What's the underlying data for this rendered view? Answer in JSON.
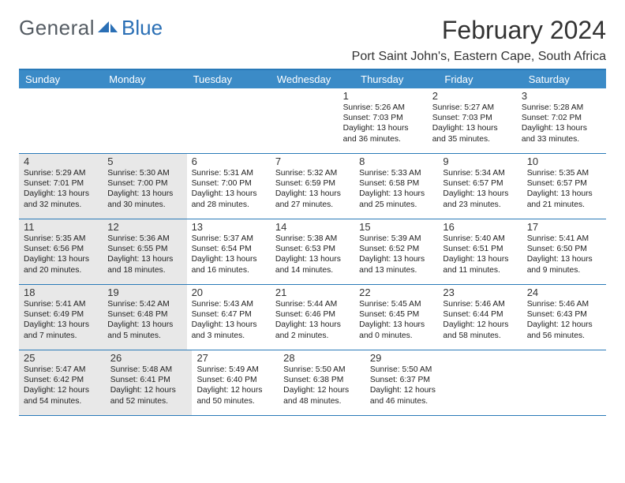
{
  "logo": {
    "part1": "General",
    "part2": "Blue"
  },
  "title": "February 2024",
  "location": "Port Saint John's, Eastern Cape, South Africa",
  "dayHeaders": [
    "Sunday",
    "Monday",
    "Tuesday",
    "Wednesday",
    "Thursday",
    "Friday",
    "Saturday"
  ],
  "colors": {
    "header_bg": "#3b8bc7",
    "header_text": "#ffffff",
    "border": "#2a7ab8",
    "shade": "#e8e8e8",
    "text": "#222222",
    "title": "#333333",
    "logo_gray": "#555c63",
    "logo_blue": "#2a6fb5"
  },
  "weeks": [
    [
      {
        "blank": true,
        "shade": false
      },
      {
        "blank": true,
        "shade": false
      },
      {
        "blank": true,
        "shade": false
      },
      {
        "blank": true,
        "shade": false
      },
      {
        "num": "1",
        "shade": false,
        "sunrise": "Sunrise: 5:26 AM",
        "sunset": "Sunset: 7:03 PM",
        "dl1": "Daylight: 13 hours",
        "dl2": "and 36 minutes."
      },
      {
        "num": "2",
        "shade": false,
        "sunrise": "Sunrise: 5:27 AM",
        "sunset": "Sunset: 7:03 PM",
        "dl1": "Daylight: 13 hours",
        "dl2": "and 35 minutes."
      },
      {
        "num": "3",
        "shade": false,
        "sunrise": "Sunrise: 5:28 AM",
        "sunset": "Sunset: 7:02 PM",
        "dl1": "Daylight: 13 hours",
        "dl2": "and 33 minutes."
      }
    ],
    [
      {
        "num": "4",
        "shade": true,
        "sunrise": "Sunrise: 5:29 AM",
        "sunset": "Sunset: 7:01 PM",
        "dl1": "Daylight: 13 hours",
        "dl2": "and 32 minutes."
      },
      {
        "num": "5",
        "shade": true,
        "sunrise": "Sunrise: 5:30 AM",
        "sunset": "Sunset: 7:00 PM",
        "dl1": "Daylight: 13 hours",
        "dl2": "and 30 minutes."
      },
      {
        "num": "6",
        "shade": false,
        "sunrise": "Sunrise: 5:31 AM",
        "sunset": "Sunset: 7:00 PM",
        "dl1": "Daylight: 13 hours",
        "dl2": "and 28 minutes."
      },
      {
        "num": "7",
        "shade": false,
        "sunrise": "Sunrise: 5:32 AM",
        "sunset": "Sunset: 6:59 PM",
        "dl1": "Daylight: 13 hours",
        "dl2": "and 27 minutes."
      },
      {
        "num": "8",
        "shade": false,
        "sunrise": "Sunrise: 5:33 AM",
        "sunset": "Sunset: 6:58 PM",
        "dl1": "Daylight: 13 hours",
        "dl2": "and 25 minutes."
      },
      {
        "num": "9",
        "shade": false,
        "sunrise": "Sunrise: 5:34 AM",
        "sunset": "Sunset: 6:57 PM",
        "dl1": "Daylight: 13 hours",
        "dl2": "and 23 minutes."
      },
      {
        "num": "10",
        "shade": false,
        "sunrise": "Sunrise: 5:35 AM",
        "sunset": "Sunset: 6:57 PM",
        "dl1": "Daylight: 13 hours",
        "dl2": "and 21 minutes."
      }
    ],
    [
      {
        "num": "11",
        "shade": true,
        "sunrise": "Sunrise: 5:35 AM",
        "sunset": "Sunset: 6:56 PM",
        "dl1": "Daylight: 13 hours",
        "dl2": "and 20 minutes."
      },
      {
        "num": "12",
        "shade": true,
        "sunrise": "Sunrise: 5:36 AM",
        "sunset": "Sunset: 6:55 PM",
        "dl1": "Daylight: 13 hours",
        "dl2": "and 18 minutes."
      },
      {
        "num": "13",
        "shade": false,
        "sunrise": "Sunrise: 5:37 AM",
        "sunset": "Sunset: 6:54 PM",
        "dl1": "Daylight: 13 hours",
        "dl2": "and 16 minutes."
      },
      {
        "num": "14",
        "shade": false,
        "sunrise": "Sunrise: 5:38 AM",
        "sunset": "Sunset: 6:53 PM",
        "dl1": "Daylight: 13 hours",
        "dl2": "and 14 minutes."
      },
      {
        "num": "15",
        "shade": false,
        "sunrise": "Sunrise: 5:39 AM",
        "sunset": "Sunset: 6:52 PM",
        "dl1": "Daylight: 13 hours",
        "dl2": "and 13 minutes."
      },
      {
        "num": "16",
        "shade": false,
        "sunrise": "Sunrise: 5:40 AM",
        "sunset": "Sunset: 6:51 PM",
        "dl1": "Daylight: 13 hours",
        "dl2": "and 11 minutes."
      },
      {
        "num": "17",
        "shade": false,
        "sunrise": "Sunrise: 5:41 AM",
        "sunset": "Sunset: 6:50 PM",
        "dl1": "Daylight: 13 hours",
        "dl2": "and 9 minutes."
      }
    ],
    [
      {
        "num": "18",
        "shade": true,
        "sunrise": "Sunrise: 5:41 AM",
        "sunset": "Sunset: 6:49 PM",
        "dl1": "Daylight: 13 hours",
        "dl2": "and 7 minutes."
      },
      {
        "num": "19",
        "shade": true,
        "sunrise": "Sunrise: 5:42 AM",
        "sunset": "Sunset: 6:48 PM",
        "dl1": "Daylight: 13 hours",
        "dl2": "and 5 minutes."
      },
      {
        "num": "20",
        "shade": false,
        "sunrise": "Sunrise: 5:43 AM",
        "sunset": "Sunset: 6:47 PM",
        "dl1": "Daylight: 13 hours",
        "dl2": "and 3 minutes."
      },
      {
        "num": "21",
        "shade": false,
        "sunrise": "Sunrise: 5:44 AM",
        "sunset": "Sunset: 6:46 PM",
        "dl1": "Daylight: 13 hours",
        "dl2": "and 2 minutes."
      },
      {
        "num": "22",
        "shade": false,
        "sunrise": "Sunrise: 5:45 AM",
        "sunset": "Sunset: 6:45 PM",
        "dl1": "Daylight: 13 hours",
        "dl2": "and 0 minutes."
      },
      {
        "num": "23",
        "shade": false,
        "sunrise": "Sunrise: 5:46 AM",
        "sunset": "Sunset: 6:44 PM",
        "dl1": "Daylight: 12 hours",
        "dl2": "and 58 minutes."
      },
      {
        "num": "24",
        "shade": false,
        "sunrise": "Sunrise: 5:46 AM",
        "sunset": "Sunset: 6:43 PM",
        "dl1": "Daylight: 12 hours",
        "dl2": "and 56 minutes."
      }
    ],
    [
      {
        "num": "25",
        "shade": true,
        "sunrise": "Sunrise: 5:47 AM",
        "sunset": "Sunset: 6:42 PM",
        "dl1": "Daylight: 12 hours",
        "dl2": "and 54 minutes."
      },
      {
        "num": "26",
        "shade": true,
        "sunrise": "Sunrise: 5:48 AM",
        "sunset": "Sunset: 6:41 PM",
        "dl1": "Daylight: 12 hours",
        "dl2": "and 52 minutes."
      },
      {
        "num": "27",
        "shade": false,
        "sunrise": "Sunrise: 5:49 AM",
        "sunset": "Sunset: 6:40 PM",
        "dl1": "Daylight: 12 hours",
        "dl2": "and 50 minutes."
      },
      {
        "num": "28",
        "shade": false,
        "sunrise": "Sunrise: 5:50 AM",
        "sunset": "Sunset: 6:38 PM",
        "dl1": "Daylight: 12 hours",
        "dl2": "and 48 minutes."
      },
      {
        "num": "29",
        "shade": false,
        "sunrise": "Sunrise: 5:50 AM",
        "sunset": "Sunset: 6:37 PM",
        "dl1": "Daylight: 12 hours",
        "dl2": "and 46 minutes."
      },
      {
        "blank": true,
        "shade": false
      },
      {
        "blank": true,
        "shade": false
      }
    ]
  ]
}
